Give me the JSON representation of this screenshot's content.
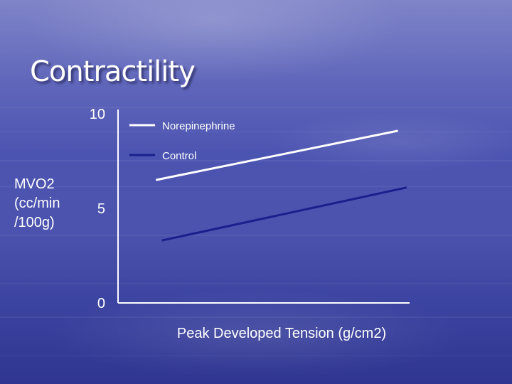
{
  "slide": {
    "title": "Contractility"
  },
  "chart_data": {
    "type": "line",
    "title": "Contractility",
    "ylabel_lines": [
      "MVO2",
      "(cc/min",
      "/100g)"
    ],
    "xlabel": "Peak Developed Tension (g/cm2)",
    "ylim": [
      0,
      10
    ],
    "xlim": [
      0,
      1
    ],
    "y_ticks": [
      {
        "value": 0,
        "label": "0"
      },
      {
        "value": 5,
        "label": "5"
      },
      {
        "value": 10,
        "label": "10"
      }
    ],
    "legend_position": "top-left",
    "grid": false,
    "series": [
      {
        "name": "Norepinephrine",
        "color": "#ffffff",
        "x": [
          0.13,
          0.96
        ],
        "y": [
          6.5,
          9.1
        ]
      },
      {
        "name": "Control",
        "color": "#1a1f8c",
        "x": [
          0.15,
          0.99
        ],
        "y": [
          3.3,
          6.1
        ]
      }
    ]
  }
}
